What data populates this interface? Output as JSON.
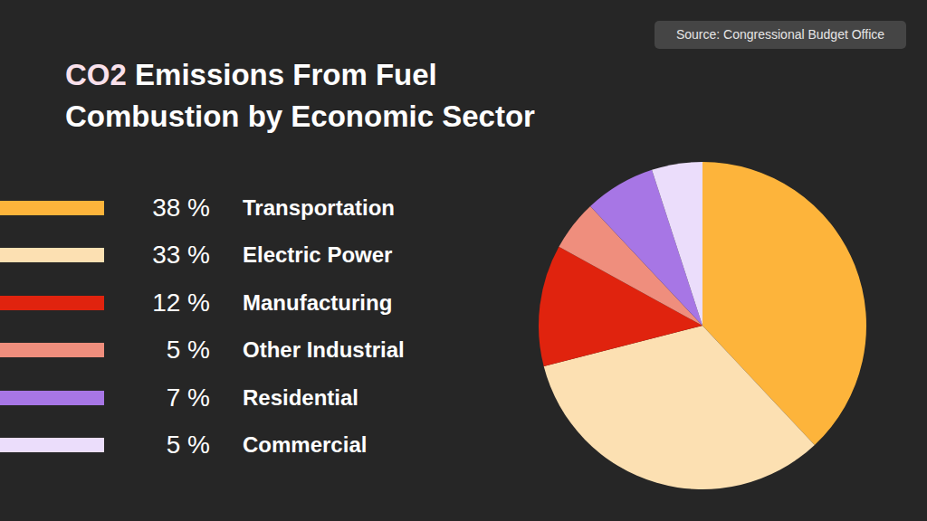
{
  "chart_data": {
    "type": "pie",
    "title": "CO2 Emissions From Fuel Combustion by Economic Sector",
    "source": "Source: Congressional Budget Office",
    "categories": [
      "Transportation",
      "Electric Power",
      "Manufacturing",
      "Other Industrial",
      "Residential",
      "Commercial"
    ],
    "values": [
      38,
      33,
      12,
      5,
      7,
      5
    ],
    "value_labels": [
      "38 %",
      "33 %",
      "12 %",
      "5 %",
      "7 %",
      "5 %"
    ],
    "colors": [
      "#FDB43B",
      "#FCE0B2",
      "#E0230E",
      "#EF8E7D",
      "#A776E5",
      "#EBDDFB"
    ],
    "legend": "left"
  }
}
